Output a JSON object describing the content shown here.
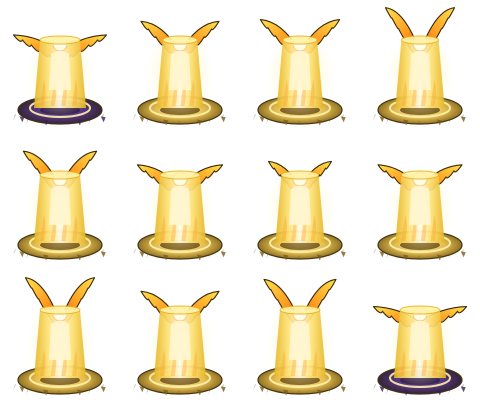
{
  "sheet": {
    "rows": 3,
    "columns": 4,
    "background": "#ffffff",
    "frames": [
      {
        "id": "frame-1",
        "wing_pose": "wide-low",
        "wing_spread": 0.95,
        "wing_lift": 0.15,
        "beam": 1.0,
        "base": "dark-purple-swirl",
        "flap_shape": "flat-spread"
      },
      {
        "id": "frame-2",
        "wing_pose": "raised-v",
        "wing_spread": 0.7,
        "wing_lift": 0.55,
        "beam": 0.8,
        "base": "gold-swirl",
        "flap_shape": "v"
      },
      {
        "id": "frame-3",
        "wing_pose": "raised-v",
        "wing_spread": 0.72,
        "wing_lift": 0.6,
        "beam": 0.8,
        "base": "gold-swirl",
        "flap_shape": "v"
      },
      {
        "id": "frame-4",
        "wing_pose": "upright",
        "wing_spread": 0.55,
        "wing_lift": 0.95,
        "beam": 0.9,
        "base": "gold-swirl",
        "flap_shape": "up"
      },
      {
        "id": "frame-5",
        "wing_pose": "raised-v",
        "wing_spread": 0.62,
        "wing_lift": 0.7,
        "beam": 1.0,
        "base": "gold-swirl",
        "flap_shape": "v"
      },
      {
        "id": "frame-6",
        "wing_pose": "wide-flat",
        "wing_spread": 0.82,
        "wing_lift": 0.3,
        "beam": 1.0,
        "base": "gold-swirl",
        "flap_shape": "flat-spread"
      },
      {
        "id": "frame-7",
        "wing_pose": "folded",
        "wing_spread": 0.45,
        "wing_lift": 0.4,
        "beam": 0.9,
        "base": "gold-swirl",
        "flap_shape": "fold"
      },
      {
        "id": "frame-8",
        "wing_pose": "wide-flat",
        "wing_spread": 0.8,
        "wing_lift": 0.3,
        "beam": 0.9,
        "base": "gold-swirl",
        "flap_shape": "flat-spread"
      },
      {
        "id": "frame-9",
        "wing_pose": "upright",
        "wing_spread": 0.55,
        "wing_lift": 0.95,
        "beam": 1.0,
        "base": "gold-swirl",
        "flap_shape": "up"
      },
      {
        "id": "frame-10",
        "wing_pose": "raised-v",
        "wing_spread": 0.7,
        "wing_lift": 0.55,
        "beam": 1.0,
        "base": "gold-swirl",
        "flap_shape": "v"
      },
      {
        "id": "frame-11",
        "wing_pose": "upright",
        "wing_spread": 0.6,
        "wing_lift": 0.9,
        "beam": 1.0,
        "base": "gold-swirl",
        "flap_shape": "up"
      },
      {
        "id": "frame-12",
        "wing_pose": "wide-low",
        "wing_spread": 0.95,
        "wing_lift": 0.1,
        "beam": 1.0,
        "base": "dark-purple-swirl",
        "flap_shape": "flat-spread"
      }
    ],
    "colors": {
      "beam_core": "#fffbe6",
      "beam_mid": "#ffe680",
      "beam_edge": "#e6b422",
      "outline": "#3b2a05",
      "wing_tip": "#ffe14d",
      "wing_mid": "#ff9a1f",
      "wing_root": "#e8281a",
      "base_gold": "#c8a030",
      "base_light": "#fff2a8",
      "base_dark": "#4a2a70",
      "base_purple": "#6a3cc0"
    }
  }
}
